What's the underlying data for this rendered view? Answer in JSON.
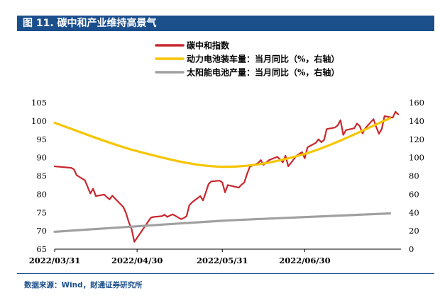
{
  "header": {
    "title": "图 11. 碳中和产业维持高景气"
  },
  "footer": {
    "source": "数据来源：Wind，财通证券研究所"
  },
  "colors": {
    "title_bg": "#1b4f8c",
    "carbon": "#c8282e",
    "battery": "#f6c500",
    "solar": "#a0a0a0"
  },
  "chart_data": {
    "type": "line",
    "x_ticks": [
      "2022/03/31",
      "2022/04/30",
      "2022/05/31",
      "2022/06/30"
    ],
    "left_axis": {
      "ylim": [
        65,
        105
      ],
      "ticks": [
        "65",
        "70",
        "75",
        "80",
        "85",
        "90",
        "95",
        "100",
        "105"
      ]
    },
    "right_axis": {
      "ylim": [
        0,
        160
      ],
      "ticks": [
        "0",
        "20",
        "40",
        "60",
        "80",
        "100",
        "120",
        "140",
        "160"
      ]
    },
    "legend_placement": "top-center",
    "series": [
      {
        "name": "碳中和指数",
        "axis": "left",
        "color": "#c8282e",
        "x": [
          "2022/03/31",
          "2022/04/06",
          "2022/04/07",
          "2022/04/08",
          "2022/04/11",
          "2022/04/12",
          "2022/04/13",
          "2022/04/14",
          "2022/04/15",
          "2022/04/18",
          "2022/04/19",
          "2022/04/20",
          "2022/04/21",
          "2022/04/22",
          "2022/04/25",
          "2022/04/26",
          "2022/04/27",
          "2022/04/28",
          "2022/04/29",
          "2022/05/05",
          "2022/05/06",
          "2022/05/09",
          "2022/05/10",
          "2022/05/11",
          "2022/05/12",
          "2022/05/13",
          "2022/05/16",
          "2022/05/17",
          "2022/05/18",
          "2022/05/19",
          "2022/05/20",
          "2022/05/23",
          "2022/05/24",
          "2022/05/25",
          "2022/05/26",
          "2022/05/27",
          "2022/05/30",
          "2022/05/31",
          "2022/06/01",
          "2022/06/02",
          "2022/06/06",
          "2022/06/07",
          "2022/06/08",
          "2022/06/09",
          "2022/06/10",
          "2022/06/13",
          "2022/06/14",
          "2022/06/15",
          "2022/06/16",
          "2022/06/17",
          "2022/06/20",
          "2022/06/21",
          "2022/06/22",
          "2022/06/23",
          "2022/06/24",
          "2022/06/27",
          "2022/06/28",
          "2022/06/29",
          "2022/06/30",
          "2022/07/01",
          "2022/07/04",
          "2022/07/05",
          "2022/07/06",
          "2022/07/07",
          "2022/07/08",
          "2022/07/11",
          "2022/07/12",
          "2022/07/13",
          "2022/07/14",
          "2022/07/15",
          "2022/07/18",
          "2022/07/19",
          "2022/07/20",
          "2022/07/21",
          "2022/07/22",
          "2022/07/25",
          "2022/07/26",
          "2022/07/27",
          "2022/07/28",
          "2022/07/29",
          "2022/08/01",
          "2022/08/02",
          "2022/08/03"
        ],
        "values": [
          87.6,
          87.2,
          86.8,
          85.2,
          83.8,
          82.0,
          80.2,
          81.5,
          79.5,
          79.9,
          79.2,
          78.6,
          79.6,
          78.8,
          76.5,
          74.8,
          72.3,
          70.5,
          67.0,
          73.6,
          73.8,
          74.0,
          74.4,
          73.8,
          74.2,
          74.5,
          73.2,
          73.5,
          74.0,
          77.0,
          77.8,
          79.5,
          78.3,
          80.5,
          82.8,
          83.5,
          83.7,
          83.2,
          80.5,
          82.5,
          81.8,
          82.6,
          83.2,
          85.5,
          87.5,
          88.5,
          89.3,
          88.0,
          88.7,
          89.3,
          90.2,
          89.5,
          88.7,
          90.5,
          87.6,
          90.5,
          91.0,
          91.5,
          89.8,
          92.8,
          94.0,
          95.0,
          94.2,
          94.8,
          97.8,
          98.2,
          98.8,
          100.2,
          96.2,
          97.5,
          98.0,
          99.3,
          98.6,
          96.6,
          98.0,
          100.5,
          98.4,
          96.5,
          97.8,
          101.3,
          100.9,
          102.5,
          101.8
        ]
      },
      {
        "name": "动力电池装车量：当月同比（%，右轴）",
        "axis": "right",
        "color": "#f6c500",
        "x": [
          "2022/03/31",
          "2022/04/30",
          "2022/05/31",
          "2022/06/30",
          "2022/07/31"
        ],
        "values": [
          138,
          107,
          90,
          104,
          143
        ]
      },
      {
        "name": "太阳能电池产量：当月同比（%，右轴）",
        "axis": "right",
        "color": "#a0a0a0",
        "x": [
          "2022/03/31",
          "2022/04/30",
          "2022/05/31",
          "2022/06/30",
          "2022/07/31"
        ],
        "values": [
          19,
          25,
          31,
          35,
          39
        ]
      }
    ]
  }
}
